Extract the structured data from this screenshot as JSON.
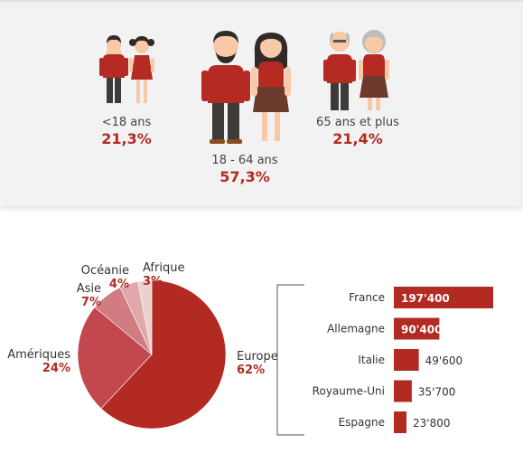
{
  "demographics": {
    "groups": [
      {
        "label": "<18 ans",
        "value": "21,3%"
      },
      {
        "label": "18 - 64 ans",
        "value": "57,3%"
      },
      {
        "label": "65 ans et plus",
        "value": "21,4%"
      }
    ]
  },
  "colors": {
    "accent": "#b22a22",
    "shirt": "#b52b24",
    "pants": "#3d3a37",
    "skin": "#f7c9a6"
  },
  "chart_data": [
    {
      "type": "pie",
      "labels": [
        "Europe",
        "Amériques",
        "Asie",
        "Océanie",
        "Afrique"
      ],
      "values": [
        62,
        24,
        7,
        4,
        3
      ],
      "value_labels": [
        "62%",
        "24%",
        "7%",
        "4%",
        "3%"
      ],
      "colors": [
        "#b22a22",
        "#c2474e",
        "#d17c80",
        "#e0a8aa",
        "#eccfd0"
      ]
    },
    {
      "type": "bar",
      "orientation": "horizontal",
      "categories": [
        "France",
        "Allemagne",
        "Italie",
        "Royaume-Uni",
        "Espagne"
      ],
      "values": [
        197400,
        90400,
        49600,
        35700,
        23800
      ],
      "value_labels": [
        "197'400",
        "90'400",
        "49'600",
        "35'700",
        "23'800"
      ]
    }
  ]
}
